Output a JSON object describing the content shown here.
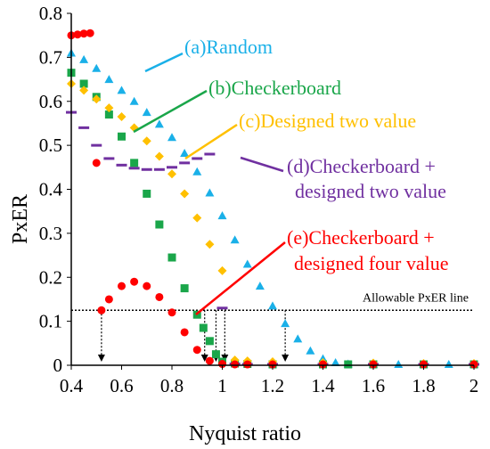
{
  "chart_data": {
    "type": "scatter",
    "xlabel": "Nyquist ratio",
    "ylabel": "PxER",
    "xlim": [
      0.4,
      2.0
    ],
    "ylim": [
      0,
      0.8
    ],
    "xticks": [
      "0.4",
      "0.6",
      "0.8",
      "1",
      "1.2",
      "1.4",
      "1.6",
      "1.8",
      "2"
    ],
    "yticks": [
      "0",
      "0.1",
      "0.2",
      "0.3",
      "0.4",
      "0.5",
      "0.6",
      "0.7",
      "0.8"
    ],
    "grid": false,
    "series": [
      {
        "name": "(a)Random",
        "color": "#1ab0e8",
        "marker": "triangle",
        "x": [
          0.4,
          0.45,
          0.5,
          0.55,
          0.6,
          0.65,
          0.7,
          0.75,
          0.8,
          0.85,
          0.9,
          0.95,
          1.0,
          1.05,
          1.1,
          1.15,
          1.2,
          1.25,
          1.3,
          1.35,
          1.4,
          1.45,
          1.5,
          1.6,
          1.7,
          1.8,
          1.9,
          2.0
        ],
        "y": [
          0.71,
          0.695,
          0.675,
          0.65,
          0.625,
          0.6,
          0.575,
          0.548,
          0.518,
          0.482,
          0.44,
          0.392,
          0.34,
          0.285,
          0.23,
          0.18,
          0.135,
          0.095,
          0.06,
          0.033,
          0.015,
          0.006,
          0.003,
          0.002,
          0.002,
          0.002,
          0.002,
          0.002
        ]
      },
      {
        "name": "(b)Checkerboard",
        "color": "#1aa64a",
        "marker": "square",
        "x": [
          0.4,
          0.45,
          0.5,
          0.55,
          0.6,
          0.65,
          0.7,
          0.75,
          0.8,
          0.85,
          0.9,
          0.925,
          0.95,
          0.975,
          1.0,
          1.05,
          1.1,
          1.2,
          1.4,
          1.5,
          1.6,
          1.8,
          2.0
        ],
        "y": [
          0.665,
          0.64,
          0.61,
          0.57,
          0.52,
          0.46,
          0.39,
          0.32,
          0.245,
          0.175,
          0.115,
          0.085,
          0.055,
          0.025,
          0.008,
          0.004,
          0.003,
          0.002,
          0.002,
          0.002,
          0.002,
          0.002,
          0.002
        ]
      },
      {
        "name": "(c)Designed two value",
        "color": "#ffc000",
        "marker": "diamond",
        "x": [
          0.4,
          0.45,
          0.5,
          0.55,
          0.6,
          0.65,
          0.7,
          0.75,
          0.8,
          0.85,
          0.9,
          0.95,
          1.0,
          1.05,
          1.1,
          1.2,
          1.4,
          1.6,
          1.8,
          2.0
        ],
        "y": [
          0.64,
          0.625,
          0.605,
          0.585,
          0.565,
          0.54,
          0.51,
          0.475,
          0.435,
          0.39,
          0.335,
          0.275,
          0.215,
          0.012,
          0.01,
          0.008,
          0.006,
          0.005,
          0.004,
          0.004
        ]
      },
      {
        "name": "(d)Checkerboard + designed two value",
        "color": "#7030a0",
        "marker": "dash",
        "x": [
          0.4,
          0.45,
          0.5,
          0.55,
          0.6,
          0.65,
          0.7,
          0.75,
          0.8,
          0.85,
          0.9,
          0.95,
          1.0,
          1.05,
          1.1,
          1.2,
          1.4,
          1.6,
          1.8,
          2.0
        ],
        "y": [
          0.575,
          0.54,
          0.5,
          0.47,
          0.455,
          0.448,
          0.445,
          0.445,
          0.45,
          0.46,
          0.47,
          0.48,
          0.13,
          0.003,
          0.002,
          0.002,
          0.002,
          0.002,
          0.002,
          0.002
        ]
      },
      {
        "name": "(e)Checkerboard + designed four value",
        "color": "#ff0000",
        "marker": "circle",
        "x": [
          0.4,
          0.425,
          0.45,
          0.475,
          0.5,
          0.52,
          0.55,
          0.6,
          0.65,
          0.7,
          0.75,
          0.8,
          0.85,
          0.9,
          0.95,
          1.0,
          1.05,
          1.1,
          1.2,
          1.4,
          1.6,
          1.8,
          2.0
        ],
        "y": [
          0.75,
          0.752,
          0.754,
          0.755,
          0.46,
          0.125,
          0.15,
          0.18,
          0.19,
          0.18,
          0.155,
          0.12,
          0.075,
          0.035,
          0.01,
          0.003,
          0.002,
          0.002,
          0.002,
          0.002,
          0.002,
          0.002,
          0.002
        ]
      }
    ],
    "annotations": {
      "a": "(a)Random",
      "b": "(b)Checkerboard",
      "c": "(c)Designed two value",
      "d1": "(d)Checkerboard +",
      "d2": "designed two value",
      "e1": "(e)Checkerboard +",
      "e2": "designed four value",
      "allowable": "Allowable  PxER line"
    },
    "allowable_y": 0.125,
    "intersections_x": [
      0.52,
      0.93,
      0.975,
      1.01,
      1.25
    ]
  }
}
